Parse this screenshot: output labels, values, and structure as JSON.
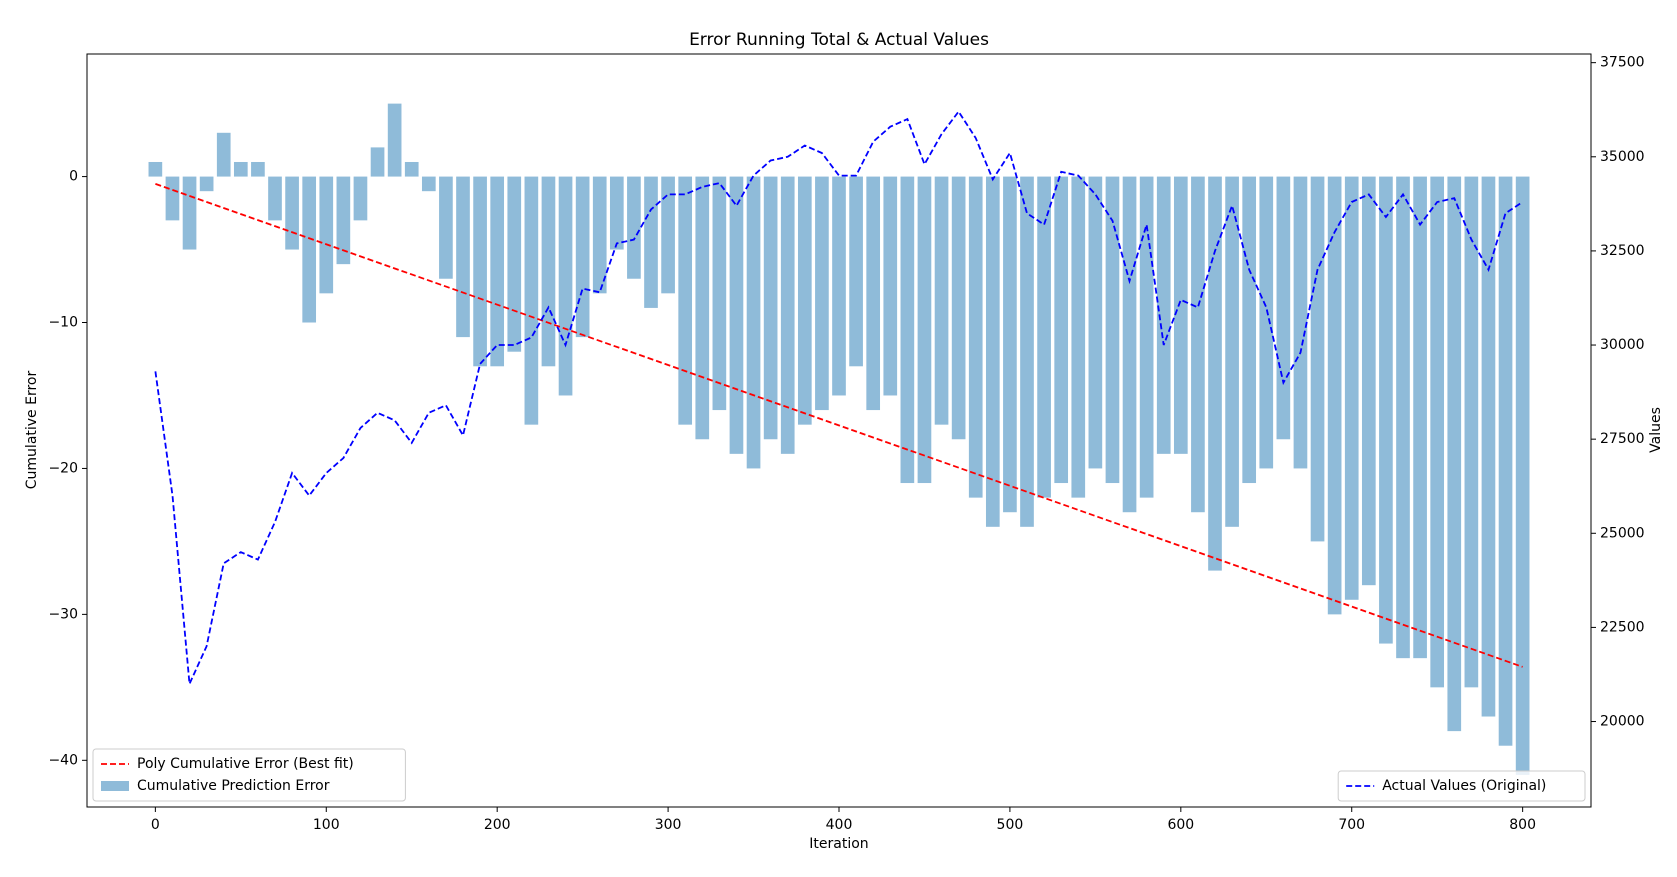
{
  "chart_data": {
    "type": "combo",
    "title": "Error Running Total & Actual Values",
    "xlabel": "Iteration",
    "ylabel": "Cumulative Error",
    "y2label": "Values",
    "xlim": [
      -40,
      840
    ],
    "xticks": [
      0,
      100,
      200,
      300,
      400,
      500,
      600,
      700,
      800
    ],
    "ylim": [
      -43.2,
      8.4
    ],
    "yticks": [
      {
        "value": -40,
        "label": "−40"
      },
      {
        "value": -30,
        "label": "−30"
      },
      {
        "value": -20,
        "label": "−20"
      },
      {
        "value": -10,
        "label": "−10"
      },
      0
    ],
    "y2lim": [
      17730,
      37730
    ],
    "y2ticks": [
      20000,
      22500,
      25000,
      27500,
      30000,
      32500,
      35000,
      37500
    ],
    "legend": "lower left",
    "legend2": "lower right",
    "x": [
      0,
      10,
      20,
      30,
      40,
      50,
      60,
      70,
      80,
      90,
      100,
      110,
      120,
      130,
      140,
      150,
      160,
      170,
      180,
      190,
      200,
      210,
      220,
      230,
      240,
      250,
      260,
      270,
      280,
      290,
      300,
      310,
      320,
      330,
      340,
      350,
      360,
      370,
      380,
      390,
      400,
      410,
      420,
      430,
      440,
      450,
      460,
      470,
      480,
      490,
      500,
      510,
      520,
      530,
      540,
      550,
      560,
      570,
      580,
      590,
      600,
      610,
      620,
      630,
      640,
      650,
      660,
      670,
      680,
      690,
      700,
      710,
      720,
      730,
      740,
      750,
      760,
      770,
      780,
      790,
      800
    ],
    "series": [
      {
        "name": "Poly Cumulative Error (Best fit)",
        "type": "line",
        "style": "dashed",
        "color": "#ff0000",
        "x": [
          0,
          800
        ],
        "values": [
          -0.5,
          -33.6
        ]
      },
      {
        "name": "Cumulative Prediction Error",
        "type": "bar",
        "color": "#1f77b4",
        "values": [
          1,
          -3,
          -5,
          -1,
          3,
          1,
          1,
          -3,
          -5,
          -10,
          -8,
          -6,
          -3,
          2,
          5,
          1,
          -1,
          -7,
          -11,
          -13,
          -13,
          -12,
          -17,
          -13,
          -15,
          -11,
          -8,
          -5,
          -7,
          -9,
          -8,
          -17,
          -18,
          -16,
          -19,
          -20,
          -18,
          -19,
          -17,
          -16,
          -15,
          -13,
          -16,
          -15,
          -21,
          -21,
          -17,
          -18,
          -22,
          -24,
          -23,
          -24,
          -22,
          -21,
          -22,
          -20,
          -21,
          -23,
          -22,
          -19,
          -19,
          -23,
          -27,
          -24,
          -21,
          -20,
          -18,
          -20,
          -25,
          -30,
          -29,
          -28,
          -32,
          -33,
          -33,
          -35,
          -38,
          -35,
          -37,
          -39,
          -41
        ]
      },
      {
        "name": "Actual Values (Original)",
        "type": "line",
        "style": "dashed",
        "color": "#0000ff",
        "axis": "y2",
        "values": [
          29300,
          26000,
          21000,
          22000,
          24200,
          24500,
          24300,
          25300,
          26600,
          26000,
          26600,
          27000,
          27800,
          28200,
          28000,
          27400,
          28200,
          28400,
          27600,
          29500,
          30000,
          30000,
          30200,
          31000,
          30000,
          31500,
          31400,
          32700,
          32800,
          33600,
          34000,
          34000,
          34200,
          34300,
          33700,
          34500,
          34900,
          35000,
          35300,
          35100,
          34500,
          34500,
          35400,
          35800,
          36000,
          34800,
          35600,
          36200,
          35500,
          34400,
          35100,
          33500,
          33200,
          34600,
          34500,
          34000,
          33300,
          31700,
          33200,
          30000,
          31200,
          31000,
          32500,
          33700,
          32000,
          31000,
          29000,
          29800,
          32000,
          33000,
          33800,
          34000,
          33400,
          34000,
          33200,
          33800,
          33900,
          32800,
          32000,
          33500,
          33800
        ]
      }
    ]
  }
}
